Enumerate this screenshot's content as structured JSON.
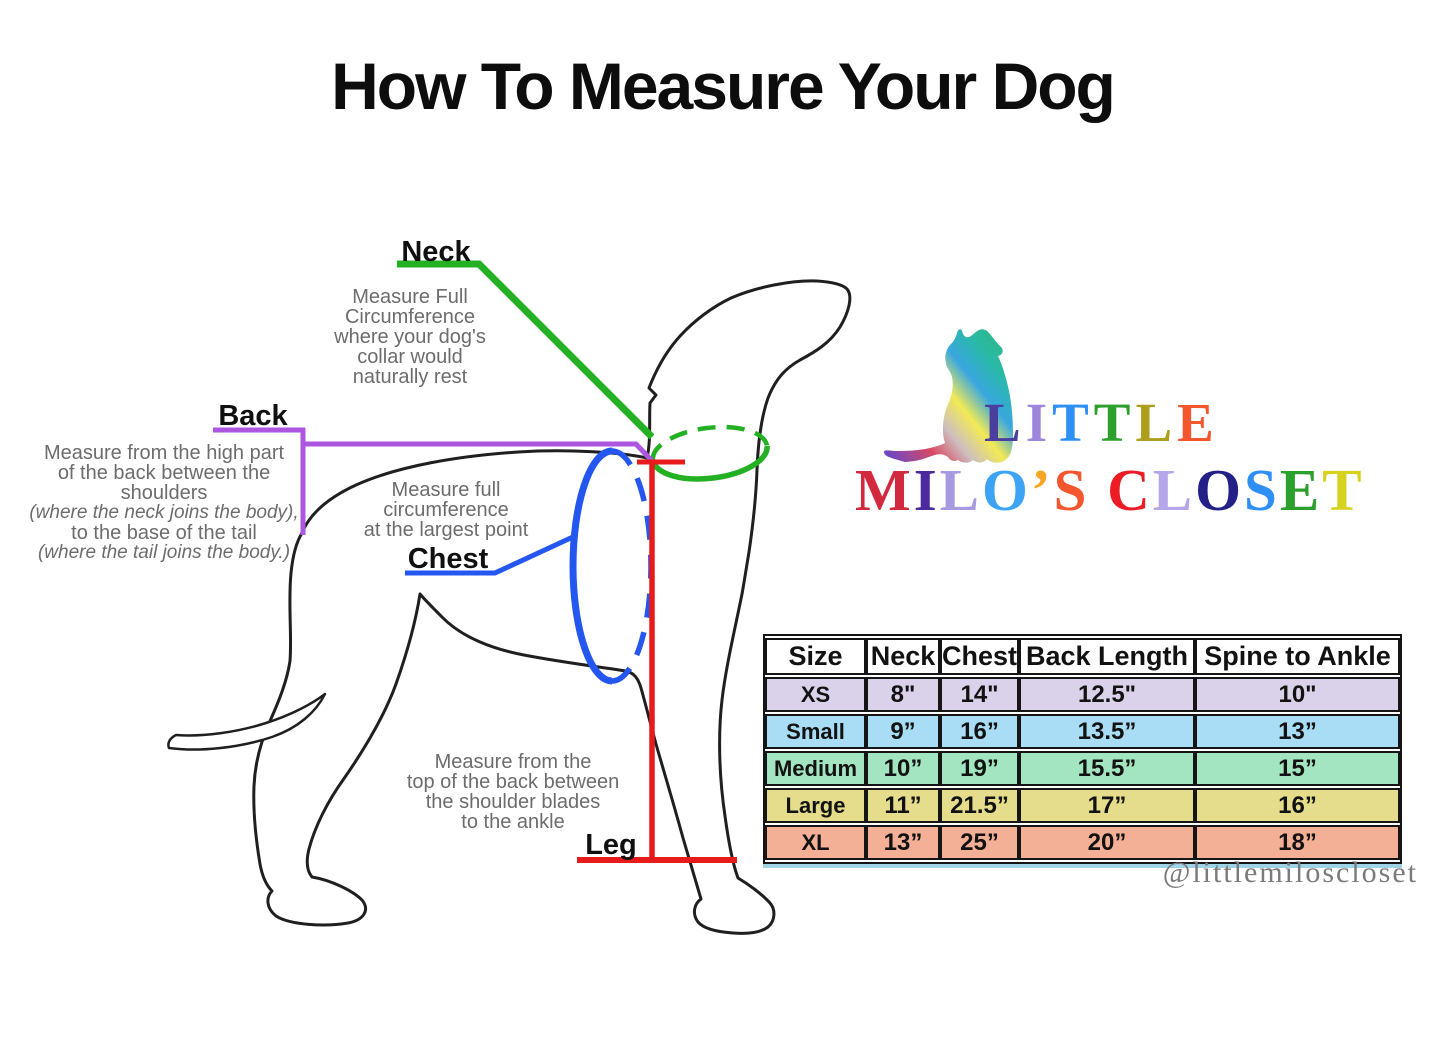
{
  "title": "How To Measure Your Dog",
  "colors": {
    "neck_green": "#23b123",
    "back_purple": "#ad56e0",
    "chest_blue": "#2456f0",
    "leg_red": "#e81b1b",
    "note_gray": "#6c6c6c",
    "outline_black": "#1f1f1f"
  },
  "annotations": {
    "neck": {
      "label": "Neck",
      "desc": [
        "Measure Full",
        "Circumference",
        "where your dog's",
        "collar would",
        "naturally rest"
      ]
    },
    "back": {
      "label": "Back",
      "desc": [
        "Measure from the high part",
        "of the back between the",
        "shoulders",
        "(where the neck joins the body),",
        "to the base of the tail",
        "(where the tail joins the body.)"
      ]
    },
    "chest": {
      "label": "Chest",
      "desc": [
        "Measure full",
        "circumference",
        "at the largest point"
      ]
    },
    "leg": {
      "label": "Leg",
      "desc": [
        "Measure from the",
        "top of the back between",
        "the shoulder blades",
        "to the ankle"
      ]
    }
  },
  "logo": {
    "line1": [
      {
        "ch": "L",
        "color": "#4a3f9f"
      },
      {
        "ch": "I",
        "color": "#9f86dd"
      },
      {
        "ch": "T",
        "color": "#2e8ff5"
      },
      {
        "ch": "T",
        "color": "#2ca02c"
      },
      {
        "ch": "L",
        "color": "#ad9f1c"
      },
      {
        "ch": "E",
        "color": "#f4562e"
      }
    ],
    "line2": [
      {
        "ch": "M",
        "color": "#d2293f"
      },
      {
        "ch": "I",
        "color": "#4a2a9e"
      },
      {
        "ch": "L",
        "color": "#a89ae0"
      },
      {
        "ch": "O",
        "color": "#3da4f5"
      },
      {
        "ch": "’",
        "color": "#f5a623"
      },
      {
        "ch": "S",
        "color": "#f4562e"
      },
      {
        "ch": " ",
        "color": "#000000"
      },
      {
        "ch": "C",
        "color": "#ec1c24"
      },
      {
        "ch": "L",
        "color": "#b4a6e8"
      },
      {
        "ch": "O",
        "color": "#232188"
      },
      {
        "ch": "S",
        "color": "#2e8ff5"
      },
      {
        "ch": "E",
        "color": "#2ca02c"
      },
      {
        "ch": "T",
        "color": "#d6d21e"
      }
    ],
    "handle": "@littlemiloscloset"
  },
  "size_chart": {
    "headers": [
      "Size",
      "Neck",
      "Chest",
      "Back Length",
      "Spine to Ankle"
    ],
    "rows": [
      {
        "label": "XS",
        "color": "#d9d2ea",
        "values": [
          "8\"",
          "14\"",
          "12.5\"",
          "10\""
        ]
      },
      {
        "label": "Small",
        "color": "#a9ddf5",
        "values": [
          "9”",
          "16”",
          "13.5”",
          "13”"
        ]
      },
      {
        "label": "Medium",
        "color": "#a3e5c0",
        "values": [
          "10”",
          "19”",
          "15.5”",
          "15”"
        ]
      },
      {
        "label": "Large",
        "color": "#e5dc8c",
        "values": [
          "11”",
          "21.5”",
          "17”",
          "16”"
        ]
      },
      {
        "label": "XL",
        "color": "#f4af97",
        "values": [
          "13”",
          "25”",
          "20”",
          "18”"
        ]
      }
    ]
  }
}
